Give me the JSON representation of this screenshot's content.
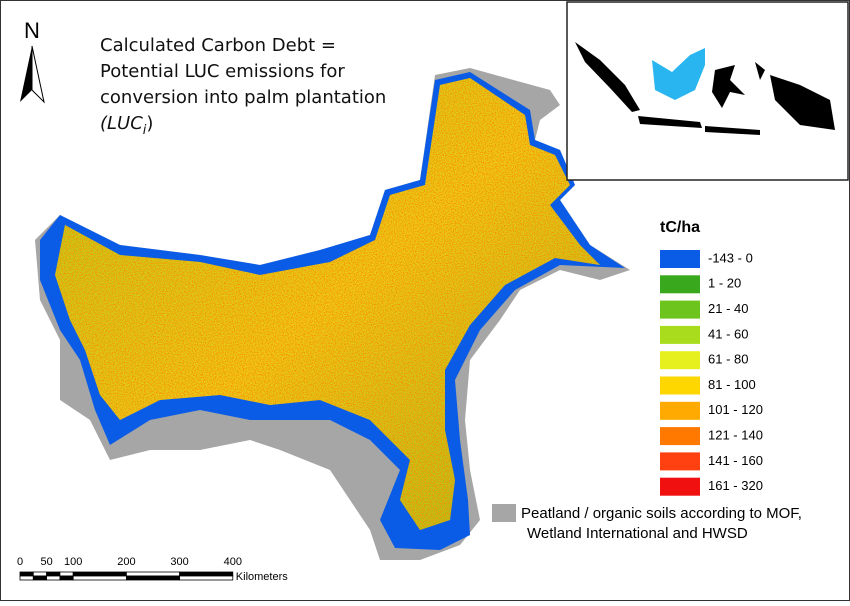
{
  "north": "N",
  "title": {
    "lines": [
      "Calculated Carbon Debt =",
      "Potential LUC emissions for",
      "conversion into palm plantation"
    ],
    "formula": [
      "(LUC",
      "i",
      ")"
    ]
  },
  "legend": {
    "title": "tC/ha",
    "items": [
      {
        "label": "-143 - 0",
        "color": "#0a5ce6"
      },
      {
        "label": "1 - 20",
        "color": "#3aa81c"
      },
      {
        "label": "21 - 40",
        "color": "#6cc41c"
      },
      {
        "label": "41 - 60",
        "color": "#a8dc1c"
      },
      {
        "label": "61 - 80",
        "color": "#e6f01e"
      },
      {
        "label": "81 - 100",
        "color": "#ffd700"
      },
      {
        "label": "101 - 120",
        "color": "#ffaa00"
      },
      {
        "label": "121 - 140",
        "color": "#ff7800"
      },
      {
        "label": "141 - 160",
        "color": "#ff4010"
      },
      {
        "label": "161 - 320",
        "color": "#f01010"
      }
    ]
  },
  "peatland": {
    "color": "#a6a6a6",
    "lines": [
      "Peatland / organic soils according to MOF,",
      "Wetland International and HWSD"
    ]
  },
  "scale_bar": {
    "ticks": [
      0,
      50,
      100,
      200,
      300,
      400
    ],
    "unit": "Kilometers"
  }
}
